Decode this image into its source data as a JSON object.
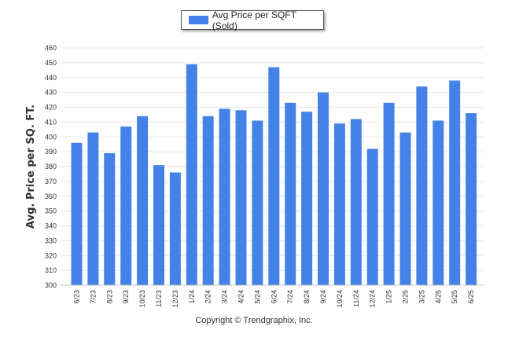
{
  "legend": {
    "label": "Avg Price per SQFT (Sold)"
  },
  "footer": {
    "copyright": "Copyright © Trendgraphix, Inc."
  },
  "colors": {
    "bar": "#4482e8",
    "grid": "#e6e6e6"
  },
  "chart_data": {
    "type": "bar",
    "title": "",
    "xlabel": "",
    "ylabel": "Avg. Price per SQ. FT.",
    "ylim": [
      300,
      460
    ],
    "ytick_step": 10,
    "grid": true,
    "legend_position": "top-center",
    "categories": [
      "6/23",
      "7/23",
      "8/23",
      "9/23",
      "10/23",
      "11/23",
      "12/23",
      "1/24",
      "2/24",
      "3/24",
      "4/24",
      "5/24",
      "6/24",
      "7/24",
      "8/24",
      "9/24",
      "10/24",
      "11/24",
      "12/24",
      "1/25",
      "2/25",
      "3/25",
      "4/25",
      "5/25",
      "6/25"
    ],
    "series": [
      {
        "name": "Avg Price per SQFT (Sold)",
        "values": [
          396,
          403,
          389,
          407,
          414,
          381,
          376,
          449,
          414,
          419,
          418,
          411,
          447,
          423,
          417,
          430,
          409,
          412,
          392,
          423,
          403,
          434,
          411,
          438,
          416
        ]
      }
    ]
  }
}
